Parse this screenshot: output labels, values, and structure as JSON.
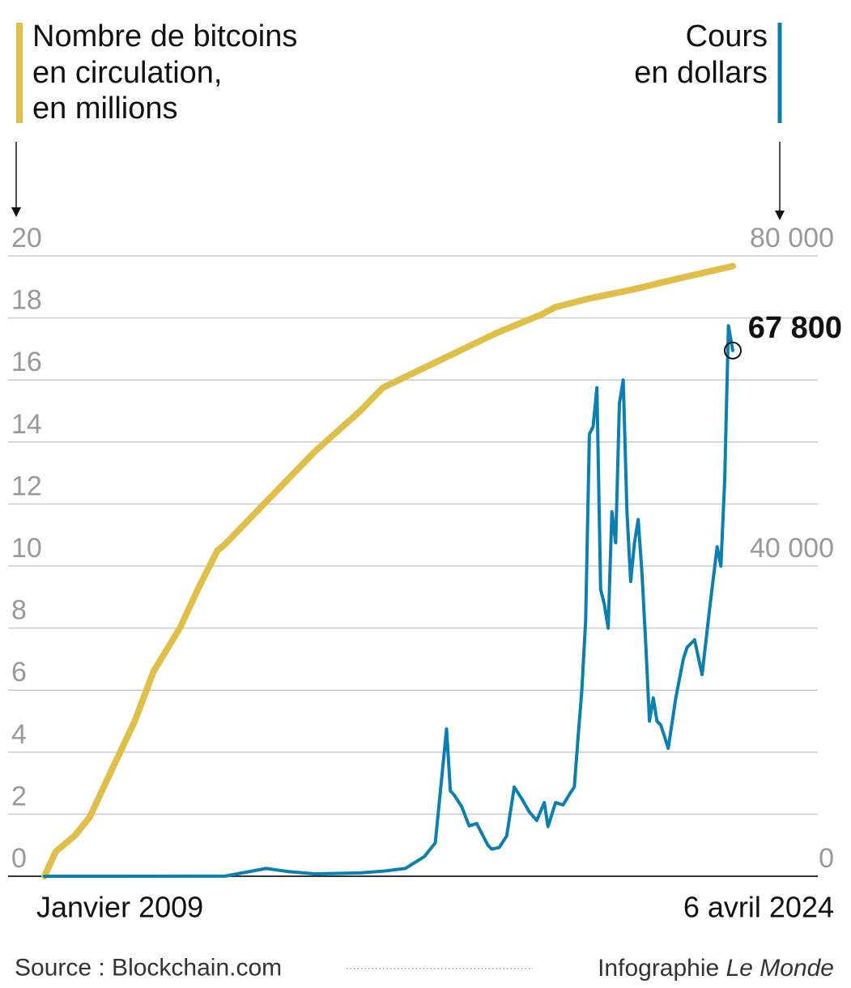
{
  "chart_data": {
    "type": "line",
    "ylabel": [
      "Nombre de bitcoins",
      "en circulation,",
      "en millions"
    ],
    "y2label": [
      "Cours",
      "en dollars"
    ],
    "xlim": [
      "2009-01",
      "2024-04-06"
    ],
    "xticks": [
      {
        "value": "2009-01",
        "label": "Janvier 2009"
      },
      {
        "value": "2024-04-06",
        "label": "6 avril 2024"
      }
    ],
    "ylim": [
      0,
      20
    ],
    "yticks": [
      0,
      2,
      4,
      6,
      8,
      10,
      12,
      14,
      16,
      18,
      20
    ],
    "y2lim": [
      0,
      80000
    ],
    "y2ticks": [
      0,
      {
        "value": 40000,
        "label": "40 000"
      },
      {
        "value": 80000,
        "label": "80 000"
      }
    ],
    "grid": true,
    "series": [
      {
        "name": "Nombre de bitcoins en circulation",
        "color": "#e0bf48",
        "x": [
          "2009-01",
          "2009-04",
          "2009-09",
          "2010-01",
          "2010-06",
          "2011-01",
          "2011-06",
          "2012-01",
          "2012-06",
          "2012-11",
          "2013-01",
          "2014-01",
          "2015-01",
          "2016-01",
          "2016-07",
          "2017-01",
          "2018-01",
          "2019-01",
          "2020-01",
          "2020-05",
          "2021-01",
          "2022-01",
          "2023-01",
          "2024-04-06"
        ],
        "values": [
          0,
          0.8,
          1.3,
          1.9,
          3.2,
          5.0,
          6.6,
          8.0,
          9.3,
          10.5,
          10.7,
          12.2,
          13.7,
          15.0,
          15.75,
          16.1,
          16.8,
          17.5,
          18.1,
          18.35,
          18.6,
          18.9,
          19.25,
          19.67
        ]
      },
      {
        "name": "Cours en dollars",
        "color": "#0a7fb0",
        "axis": "y2",
        "x": [
          "2009-01",
          "2013-01",
          "2013-12",
          "2014-06",
          "2015-01",
          "2016-01",
          "2016-07",
          "2017-01",
          "2017-06",
          "2017-09",
          "2017-12",
          "2018-01",
          "2018-02",
          "2018-04",
          "2018-06",
          "2018-08",
          "2018-11",
          "2018-12",
          "2019-02",
          "2019-04",
          "2019-06",
          "2019-08",
          "2019-10",
          "2019-12",
          "2020-02",
          "2020-03",
          "2020-05",
          "2020-07",
          "2020-09",
          "2020-10",
          "2020-11",
          "2020-12",
          "2021-01",
          "2021-02",
          "2021-03",
          "2021-04",
          "2021-05",
          "2021-06",
          "2021-07",
          "2021-08",
          "2021-09",
          "2021-10",
          "2021-11",
          "2021-12",
          "2022-01",
          "2022-02",
          "2022-03",
          "2022-04",
          "2022-05",
          "2022-06",
          "2022-07",
          "2022-08",
          "2022-09",
          "2022-11",
          "2023-01",
          "2023-03",
          "2023-04",
          "2023-06",
          "2023-08",
          "2023-10",
          "2023-12",
          "2024-01",
          "2024-02",
          "2024-03",
          "2024-04-06"
        ],
        "values": [
          0,
          13,
          1000,
          600,
          300,
          430,
          650,
          1000,
          2500,
          4300,
          19000,
          11000,
          10500,
          9000,
          6500,
          6800,
          4000,
          3500,
          3700,
          5200,
          11500,
          10000,
          8300,
          7200,
          9500,
          6400,
          9500,
          9200,
          10800,
          11500,
          18000,
          24000,
          33000,
          57000,
          58000,
          63000,
          37000,
          35000,
          32000,
          47000,
          43000,
          61000,
          64000,
          47000,
          38000,
          43000,
          46000,
          39000,
          30000,
          20000,
          23000,
          20000,
          19500,
          16500,
          23000,
          28000,
          29500,
          30500,
          26000,
          34500,
          42500,
          40000,
          51000,
          71000,
          67800
        ]
      }
    ],
    "annotation": "67 800",
    "source": "Source : Blockchain.com",
    "credit": "Infographie",
    "credit_publication": "Le Monde"
  }
}
